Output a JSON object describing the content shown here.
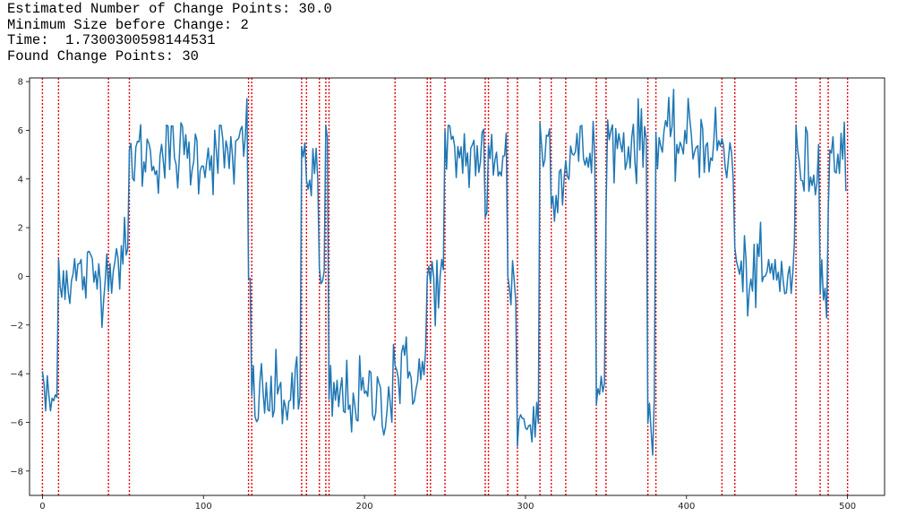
{
  "output": {
    "line1": "Estimated Number of Change Points: 30.0",
    "line2": "Minimum Size before Change: 2",
    "line3": "Time:  1.7300300598144531",
    "line4": "Found Change Points: 30"
  },
  "chart_data": {
    "type": "line",
    "title": "",
    "xlabel": "",
    "ylabel": "",
    "xlim": [
      -8,
      523
    ],
    "ylim": [
      -9,
      8.15
    ],
    "xticks": [
      0,
      100,
      200,
      300,
      400,
      500
    ],
    "yticks": [
      -8,
      -6,
      -4,
      -2,
      0,
      2,
      4,
      6,
      8
    ],
    "grid": false,
    "colors": {
      "series": "#1f77b4",
      "changepoints": "#e8000b"
    },
    "change_points": [
      0,
      10,
      41,
      54,
      128,
      130,
      161,
      164,
      172,
      176,
      178,
      219,
      239,
      241,
      250,
      275,
      277,
      289,
      295,
      309,
      316,
      325,
      344,
      350,
      376,
      381,
      422,
      430,
      468,
      483,
      488,
      500
    ],
    "segments": [
      {
        "start": 0,
        "end": 10,
        "level": -5.2,
        "first": -3.9
      },
      {
        "start": 10,
        "end": 41,
        "level": 0.0,
        "first": 0.7
      },
      {
        "start": 41,
        "end": 54,
        "level": 0.8
      },
      {
        "start": 54,
        "end": 128,
        "level": 5.0,
        "first": 5.2,
        "last": 7.3
      },
      {
        "start": 128,
        "end": 130,
        "level": -0.3
      },
      {
        "start": 130,
        "end": 161,
        "level": -5.0
      },
      {
        "start": 161,
        "end": 164,
        "level": 5.0
      },
      {
        "start": 164,
        "end": 172,
        "level": 4.3
      },
      {
        "start": 172,
        "end": 176,
        "level": -0.4
      },
      {
        "start": 176,
        "end": 178,
        "level": 5.0
      },
      {
        "start": 178,
        "end": 219,
        "level": -5.0,
        "last": -2.8
      },
      {
        "start": 219,
        "end": 239,
        "level": -4.0
      },
      {
        "start": 239,
        "end": 241,
        "level": 0.2
      },
      {
        "start": 241,
        "end": 250,
        "level": -0.2
      },
      {
        "start": 250,
        "end": 275,
        "level": 5.0,
        "first": 6.0
      },
      {
        "start": 275,
        "end": 277,
        "level": 2.0
      },
      {
        "start": 277,
        "end": 289,
        "level": 5.0
      },
      {
        "start": 289,
        "end": 295,
        "level": -0.3
      },
      {
        "start": 295,
        "end": 309,
        "level": -6.0
      },
      {
        "start": 309,
        "end": 316,
        "level": 5.5,
        "first": 6.3
      },
      {
        "start": 316,
        "end": 325,
        "level": 4.0
      },
      {
        "start": 325,
        "end": 344,
        "level": 5.0
      },
      {
        "start": 344,
        "end": 350,
        "level": -4.8
      },
      {
        "start": 350,
        "end": 376,
        "level": 5.5
      },
      {
        "start": 376,
        "end": 381,
        "level": -5.5
      },
      {
        "start": 381,
        "end": 422,
        "level": 5.5
      },
      {
        "start": 422,
        "end": 430,
        "level": 4.8
      },
      {
        "start": 430,
        "end": 468,
        "level": 0.0,
        "first": 1.2
      },
      {
        "start": 468,
        "end": 483,
        "level": 4.5,
        "first": 6.2
      },
      {
        "start": 483,
        "end": 488,
        "level": 0.0
      },
      {
        "start": 488,
        "end": 500,
        "level": 5.0,
        "last": 3.5
      }
    ],
    "noise_sd": 0.8
  }
}
